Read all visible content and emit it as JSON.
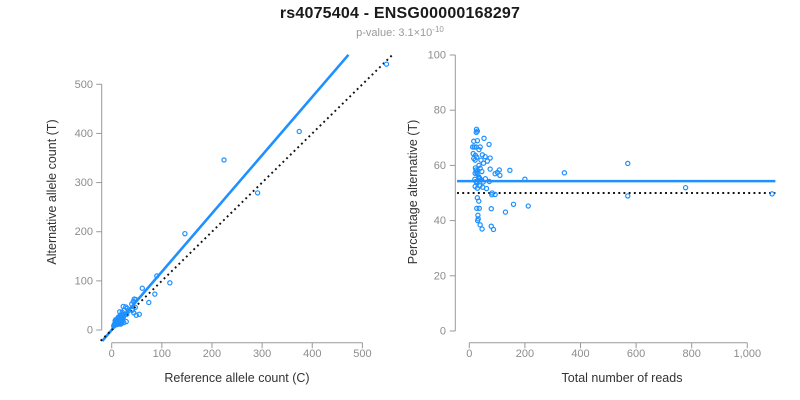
{
  "header": {
    "title": "rs4075404 - ENSG00000168297",
    "subtitle_prefix": "p-value: ",
    "p_value_mantissa_base": "3.1×10",
    "p_value_exponent": "-10"
  },
  "colors": {
    "accent_blue": "#1E90FF",
    "reference_line_black": "#111111",
    "axis_line_gray": "#999999",
    "tick_label_gray": "#8c8c8c",
    "axis_title_gray": "#333333"
  },
  "chart_data": [
    {
      "type": "scatter",
      "name": "alt-vs-ref-allele-counts",
      "xlabel": "Reference allele count (C)",
      "ylabel": "Alternative allele count (T)",
      "xticks": {
        "values": [
          0,
          100,
          200,
          300,
          400,
          500
        ],
        "labels": [
          "0",
          "100",
          "200",
          "300",
          "400",
          "500"
        ]
      },
      "yticks": {
        "values": [
          0,
          100,
          200,
          300,
          400,
          500
        ],
        "labels": [
          "0",
          "100",
          "200",
          "300",
          "400",
          "500"
        ]
      },
      "xlim": [
        -22,
        576
      ],
      "ylim": [
        -22.5,
        560
      ],
      "grid": false,
      "legend": false,
      "fit_line": {
        "style": "solid",
        "slope": 1.186,
        "intercept": 0,
        "meaning": "fitted allelic ratio"
      },
      "identity_line": {
        "style": "dotted",
        "slope": 1,
        "intercept": 0,
        "meaning": "y = x (50% expectation)"
      },
      "points": [
        [
          548,
          541
        ],
        [
          374,
          404
        ],
        [
          224,
          346
        ],
        [
          291,
          279
        ],
        [
          146,
          196
        ],
        [
          116,
          96
        ],
        [
          90,
          110
        ],
        [
          86,
          73
        ],
        [
          74,
          56
        ],
        [
          61,
          85
        ],
        [
          55,
          32
        ],
        [
          43,
          58
        ],
        [
          41,
          41
        ],
        [
          7,
          19
        ],
        [
          8,
          21
        ],
        [
          7,
          18
        ],
        [
          16,
          37
        ],
        [
          9,
          20
        ],
        [
          23,
          48
        ],
        [
          8,
          16
        ],
        [
          13,
          26
        ],
        [
          12,
          23
        ],
        [
          17,
          30
        ],
        [
          8,
          14
        ],
        [
          21,
          36
        ],
        [
          28,
          47
        ],
        [
          10,
          17
        ],
        [
          16,
          26
        ],
        [
          25,
          40
        ],
        [
          8,
          13
        ],
        [
          14,
          21
        ],
        [
          20,
          31
        ],
        [
          9,
          13
        ],
        [
          16,
          23
        ],
        [
          31,
          44
        ],
        [
          11,
          15
        ],
        [
          19,
          26
        ],
        [
          40,
          53
        ],
        [
          9,
          12
        ],
        [
          16,
          20
        ],
        [
          26,
          32
        ],
        [
          12,
          14
        ],
        [
          19,
          23
        ],
        [
          33,
          39
        ],
        [
          13,
          15
        ],
        [
          23,
          27
        ],
        [
          10,
          11
        ],
        [
          18,
          20
        ],
        [
          30,
          32
        ],
        [
          14,
          15
        ],
        [
          23,
          25
        ],
        [
          15,
          14
        ],
        [
          18,
          16
        ],
        [
          41,
          40
        ],
        [
          47,
          46
        ],
        [
          15,
          12
        ],
        [
          20,
          16
        ],
        [
          44,
          35
        ],
        [
          18,
          12
        ],
        [
          19,
          13
        ],
        [
          18,
          13
        ],
        [
          24,
          15
        ],
        [
          49,
          30
        ],
        [
          29,
          17
        ],
        [
          45,
          63
        ],
        [
          48,
          62
        ],
        [
          5,
          9
        ],
        [
          6,
          12
        ],
        [
          4,
          8
        ],
        [
          9,
          11
        ],
        [
          6,
          10
        ],
        [
          5,
          11
        ],
        [
          12,
          16
        ],
        [
          10,
          14
        ],
        [
          13,
          18
        ],
        [
          15,
          19
        ],
        [
          11,
          13
        ],
        [
          17,
          21
        ]
      ]
    },
    {
      "type": "scatter",
      "name": "percentage-alt-vs-total-reads",
      "xlabel": "Total number of reads",
      "ylabel": "Percentage alternative (T)",
      "xticks": {
        "values": [
          0,
          200,
          400,
          600,
          800,
          1000
        ],
        "labels": [
          "0",
          "200",
          "400",
          "600",
          "800",
          "1,000"
        ]
      },
      "yticks": {
        "values": [
          0,
          20,
          40,
          60,
          80,
          100
        ],
        "labels": [
          "0",
          "20",
          "40",
          "60",
          "80",
          "100"
        ]
      },
      "xlim": [
        -44,
        1101
      ],
      "ylim": [
        0,
        104
      ],
      "grid": false,
      "legend": false,
      "mean_line": {
        "style": "solid",
        "y": 54.3,
        "meaning": "observed mean percentage alternative"
      },
      "null_line": {
        "style": "dotted",
        "y": 50,
        "meaning": "50% null expectation"
      },
      "points_derived_from_left_panel": "for each [C,T] point: x = C+T (total reads), y = 100*T/(C+T) (percentage alternative)"
    }
  ]
}
